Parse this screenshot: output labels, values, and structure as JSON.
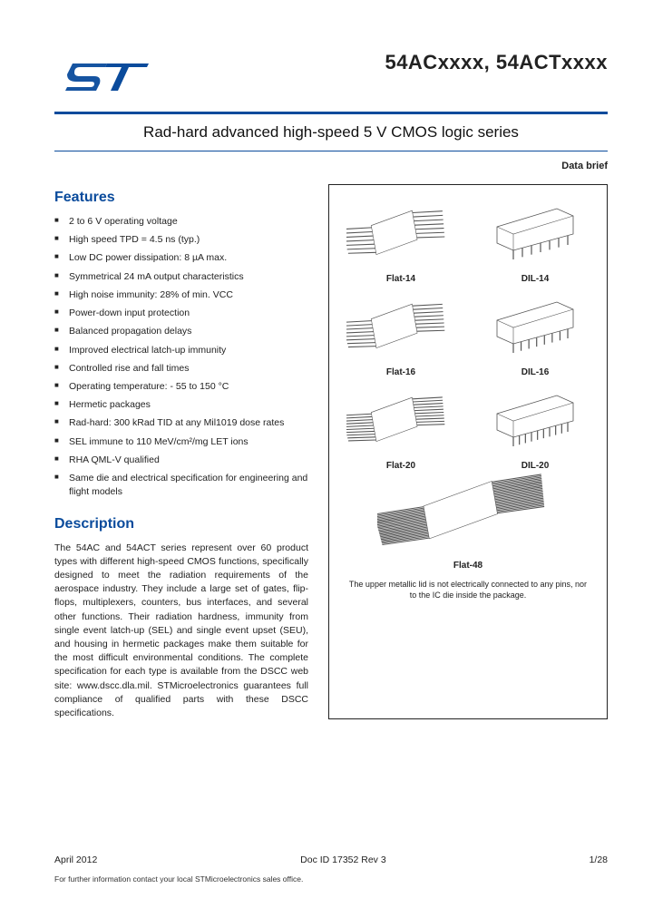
{
  "header": {
    "part_numbers": "54ACxxxx, 54ACTxxxx",
    "subtitle": "Rad-hard advanced high-speed 5 V CMOS logic series",
    "databrief": "Data brief"
  },
  "logo": {
    "color": "#0a4b9c"
  },
  "features": {
    "title": "Features",
    "items": [
      "2 to 6 V operating voltage",
      "High speed TPD = 4.5 ns (typ.)",
      "Low DC power dissipation: 8 µA max.",
      "Symmetrical 24 mA output characteristics",
      "High noise immunity: 28% of min. VCC",
      "Power-down input protection",
      "Balanced propagation delays",
      "Improved electrical latch-up immunity",
      "Controlled rise and fall times",
      "Operating temperature: - 55 to 150 °C",
      "Hermetic packages",
      "Rad-hard: 300 kRad TID at any Mil1019 dose rates",
      "SEL immune to 110 MeV/cm²/mg LET ions",
      "RHA QML-V qualified",
      "Same die and electrical specification for engineering and flight models"
    ]
  },
  "description": {
    "title": "Description",
    "body": "The 54AC and 54ACT series represent over 60 product types with different high-speed CMOS functions, specifically designed to meet the radiation requirements of the aerospace industry. They include a large set of gates, flip-flops, multiplexers, counters, bus interfaces, and several other functions. Their radiation hardness, immunity from single event latch-up (SEL) and single event upset (SEU), and housing in hermetic packages make them suitable for the most difficult environmental conditions. The complete specification for each type is available from the DSCC web site: www.dscc.dla.mil. STMicroelectronics guarantees full compliance of qualified parts with these DSCC specifications."
  },
  "packages": {
    "items": [
      {
        "label": "Flat-14",
        "type": "flat",
        "pins": 14
      },
      {
        "label": "DIL-14",
        "type": "dil",
        "pins": 14
      },
      {
        "label": "Flat-16",
        "type": "flat",
        "pins": 16
      },
      {
        "label": "DIL-16",
        "type": "dil",
        "pins": 16
      },
      {
        "label": "Flat-20",
        "type": "flat",
        "pins": 20
      },
      {
        "label": "DIL-20",
        "type": "dil",
        "pins": 20
      }
    ],
    "wide": {
      "label": "Flat-48",
      "type": "flat",
      "pins": 48
    },
    "note": "The upper metallic lid is not electrically connected to any pins, nor to the IC die inside the package.",
    "stroke_color": "#222"
  },
  "footer": {
    "date": "April 2012",
    "docid": "Doc ID 17352 Rev 3",
    "page": "1/28",
    "note": "For further information contact your local STMicroelectronics sales office."
  }
}
